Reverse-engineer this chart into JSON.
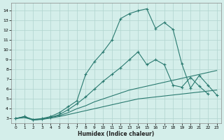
{
  "xlabel": "Humidex (Indice chaleur)",
  "bg_color": "#d4eeea",
  "grid_color": "#b0d4ce",
  "line_color": "#2a7a70",
  "xlim": [
    -0.5,
    23.5
  ],
  "ylim": [
    2.5,
    14.8
  ],
  "xticks": [
    0,
    1,
    2,
    3,
    4,
    5,
    6,
    7,
    8,
    9,
    10,
    11,
    12,
    13,
    14,
    15,
    16,
    17,
    18,
    19,
    20,
    21,
    22,
    23
  ],
  "yticks": [
    3,
    4,
    5,
    6,
    7,
    8,
    9,
    10,
    11,
    12,
    13,
    14
  ],
  "lines": [
    {
      "x": [
        0,
        1,
        2,
        3,
        4,
        5,
        6,
        7,
        8,
        9,
        10,
        11,
        12,
        13,
        14,
        15,
        16,
        17,
        18,
        19,
        20,
        21,
        22,
        23
      ],
      "y": [
        3.0,
        3.1,
        2.85,
        2.9,
        3.05,
        3.2,
        3.4,
        3.6,
        3.8,
        4.0,
        4.2,
        4.4,
        4.6,
        4.8,
        5.0,
        5.1,
        5.2,
        5.3,
        5.4,
        5.5,
        5.6,
        5.7,
        5.8,
        5.9
      ],
      "marker": false
    },
    {
      "x": [
        0,
        1,
        2,
        3,
        4,
        5,
        6,
        7,
        8,
        9,
        10,
        11,
        12,
        13,
        14,
        15,
        16,
        17,
        18,
        19,
        20,
        21,
        22,
        23
      ],
      "y": [
        3.0,
        3.15,
        2.85,
        2.95,
        3.1,
        3.3,
        3.6,
        4.0,
        4.3,
        4.7,
        5.0,
        5.3,
        5.6,
        5.9,
        6.1,
        6.3,
        6.5,
        6.7,
        6.9,
        7.1,
        7.3,
        7.5,
        7.7,
        7.9
      ],
      "marker": false
    },
    {
      "x": [
        0,
        1,
        2,
        3,
        4,
        5,
        6,
        7,
        8,
        9,
        10,
        11,
        12,
        13,
        14,
        15,
        16,
        17,
        18,
        19,
        20,
        21,
        22,
        23
      ],
      "y": [
        3.0,
        3.2,
        2.85,
        2.95,
        3.1,
        3.4,
        3.9,
        4.5,
        5.2,
        6.0,
        6.8,
        7.5,
        8.2,
        9.0,
        9.8,
        8.5,
        9.0,
        8.5,
        6.4,
        6.2,
        7.2,
        6.3,
        5.5,
        null
      ],
      "marker": true
    },
    {
      "x": [
        0,
        1,
        2,
        3,
        4,
        5,
        6,
        7,
        8,
        9,
        10,
        11,
        12,
        13,
        14,
        15,
        16,
        17,
        18,
        19,
        20,
        21,
        22,
        23
      ],
      "y": [
        3.0,
        3.2,
        2.9,
        3.0,
        3.2,
        3.6,
        4.2,
        4.8,
        7.5,
        8.8,
        9.8,
        11.0,
        13.2,
        13.7,
        14.0,
        14.2,
        12.2,
        12.8,
        12.1,
        8.6,
        6.1,
        7.4,
        6.4,
        5.4
      ],
      "marker": true
    }
  ]
}
